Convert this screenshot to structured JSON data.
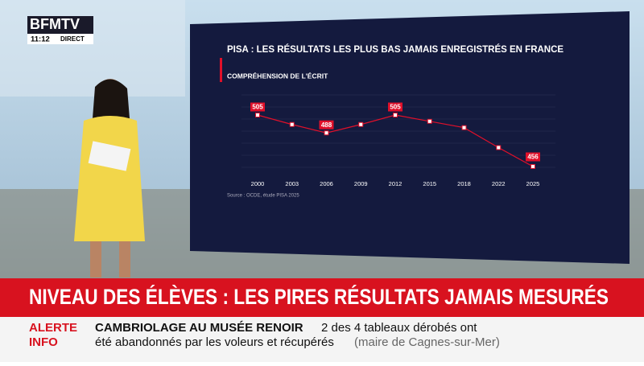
{
  "chart_data": {
    "type": "line",
    "title": "PISA : LES RÉSULTATS LES PLUS BAS JAMAIS ENREGISTRÉS EN FRANCE",
    "subtitle": "COMPRÉHENSION DE L'ÉCRIT",
    "source": "Source : OCDE, étude PISA 2025",
    "categories": [
      "2000",
      "2003",
      "2006",
      "2009",
      "2012",
      "2015",
      "2018",
      "2022",
      "2025"
    ],
    "values": [
      505,
      496,
      488,
      496,
      505,
      499,
      493,
      474,
      456
    ],
    "value_labels": [
      "505",
      null,
      "488",
      null,
      "505",
      null,
      null,
      null,
      "456"
    ],
    "color": "#e0102a",
    "ylim": [
      440,
      520
    ]
  },
  "broadcast": {
    "logo": "BFMTV",
    "time": "11:12",
    "live": "DIRECT",
    "headline": "NIVEAU DES ÉLÈVES : LES PIRES RÉSULTATS JAMAIS MESURÉS",
    "alert_line1": "ALERTE",
    "alert_line2": "INFO",
    "ticker_title": "CAMBRIOLAGE AU MUSÉE RENOIR",
    "ticker_text1": "2 des 4 tableaux dérobés ont",
    "ticker_text2": "été abandonnés par les voleurs et récupérés",
    "ticker_source": "(maire de Cagnes-sur-Mer)"
  }
}
